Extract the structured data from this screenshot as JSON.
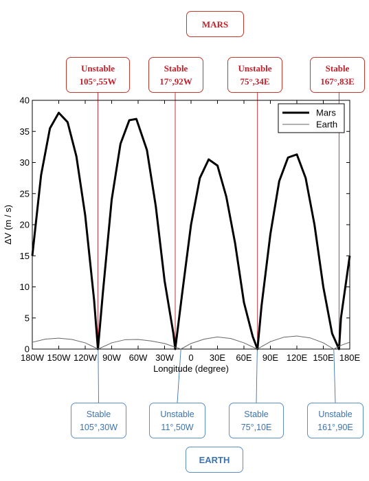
{
  "chart_data": {
    "type": "line",
    "xlabel": "Longitude (degree)",
    "ylabel": "ΔV (m / s)",
    "xlim": [
      -180,
      180
    ],
    "ylim": [
      0,
      40
    ],
    "x_ticks": [
      -180,
      -150,
      -120,
      -90,
      -60,
      -30,
      0,
      30,
      60,
      90,
      120,
      150,
      180
    ],
    "x_tick_labels": [
      "180W",
      "150W",
      "120W",
      "90W",
      "60W",
      "30W",
      "0",
      "30E",
      "60E",
      "90E",
      "120E",
      "150E",
      "180E"
    ],
    "y_ticks": [
      0,
      5,
      10,
      15,
      20,
      25,
      30,
      35,
      40
    ],
    "y_tick_labels": [
      "0",
      "5",
      "10",
      "15",
      "20",
      "25",
      "30",
      "35",
      "40"
    ],
    "legend_position": "top-right",
    "series": [
      {
        "name": "Mars",
        "color": "#000000",
        "x": [
          -180,
          -170,
          -160,
          -150,
          -140,
          -130,
          -120,
          -110,
          -105.55,
          -100,
          -90,
          -80,
          -70,
          -62,
          -50,
          -40,
          -30,
          -20,
          -17.92,
          -10,
          0,
          10,
          20,
          30,
          40,
          50,
          60,
          70,
          75.34,
          80,
          90,
          100,
          110,
          120,
          130,
          140,
          150,
          160,
          167.83,
          170,
          180
        ],
        "y": [
          15,
          28,
          35.5,
          38,
          36.5,
          31,
          21.5,
          8,
          0,
          9,
          24,
          33,
          36.8,
          37,
          32,
          23,
          11,
          2.5,
          0,
          9,
          20,
          27.5,
          30.5,
          29.5,
          24.5,
          17,
          7.5,
          2,
          0,
          7,
          18.5,
          27,
          30.8,
          31.3,
          27.5,
          20,
          10,
          2.5,
          0,
          5,
          15
        ]
      },
      {
        "name": "Earth",
        "color": "#666666",
        "x": [
          -180,
          -165,
          -150,
          -135,
          -120,
          -105.3,
          -90,
          -75,
          -60,
          -45,
          -30,
          -11.5,
          0,
          15,
          30,
          45,
          60,
          75.1,
          90,
          105,
          120,
          135,
          150,
          161.9,
          170,
          180
        ],
        "y": [
          1.1,
          1.6,
          1.75,
          1.55,
          1.0,
          0,
          1.0,
          1.5,
          1.55,
          1.3,
          0.9,
          0,
          0.9,
          1.6,
          1.95,
          1.7,
          1.0,
          0,
          1.2,
          1.9,
          2.1,
          1.8,
          1.0,
          0,
          0.6,
          1.1
        ]
      }
    ]
  },
  "annotations": {
    "mars_title": "MARS",
    "earth_title": "EARTH",
    "mars": [
      {
        "status": "Unstable",
        "location": "105°,55W",
        "lon": -105.55
      },
      {
        "status": "Stable",
        "location": "17°,92W",
        "lon": -17.92
      },
      {
        "status": "Unstable",
        "location": "75°,34E",
        "lon": 75.34
      },
      {
        "status": "Stable",
        "location": "167°,83E",
        "lon": 167.83
      }
    ],
    "earth": [
      {
        "status": "Stable",
        "location": "105°,30W",
        "lon": -105.3
      },
      {
        "status": "Unstable",
        "location": "11°,50W",
        "lon": -11.5
      },
      {
        "status": "Stable",
        "location": "75°,10E",
        "lon": 75.1
      },
      {
        "status": "Unstable",
        "location": "161°,90E",
        "lon": 161.9
      }
    ],
    "mars_color": "#c0202a",
    "earth_color": "#3c72b0"
  }
}
